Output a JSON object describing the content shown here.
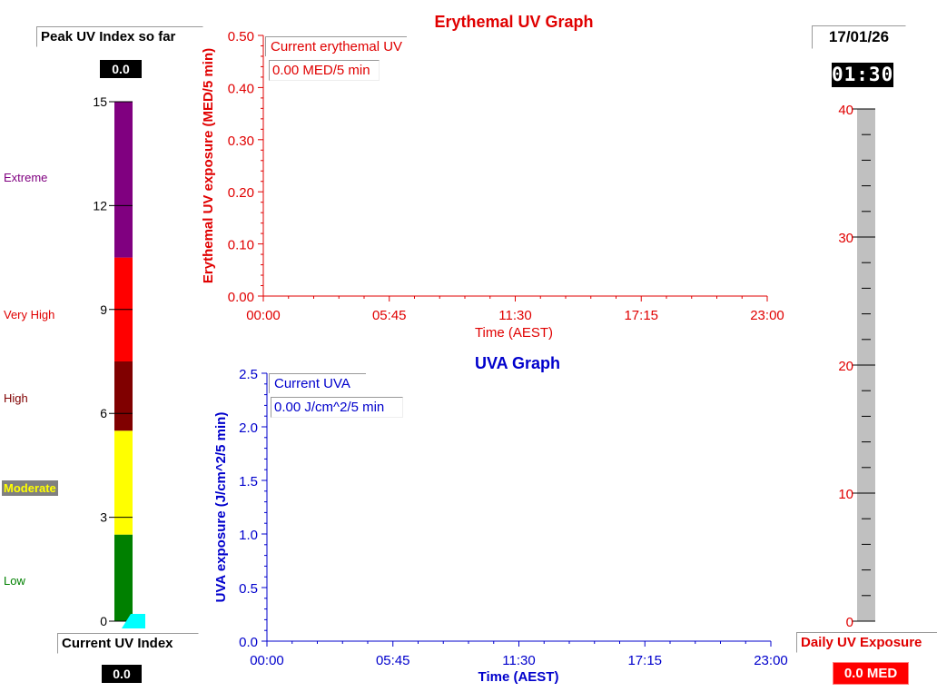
{
  "peak": {
    "label": "Peak UV Index so far",
    "value": "0.0"
  },
  "current_index": {
    "label": "Current UV Index",
    "value": "0.0"
  },
  "date": "17/01/26",
  "clock": "01:30",
  "daily": {
    "label": "Daily UV Exposure",
    "value": "0.0 MED"
  },
  "uv_scale": {
    "levels": [
      {
        "name": "Low",
        "color": "#008000",
        "from": 0,
        "to": 2.5
      },
      {
        "name": "Moderate",
        "color": "#ffff00",
        "from": 2.5,
        "to": 5.5
      },
      {
        "name": "High",
        "color": "#800000",
        "from": 5.5,
        "to": 7.5
      },
      {
        "name": "Very High",
        "color": "#ff0000",
        "from": 7.5,
        "to": 10.5
      },
      {
        "name": "Extreme",
        "color": "#800080",
        "from": 10.5,
        "to": 15
      }
    ]
  },
  "chart_data": [
    {
      "type": "bar",
      "name": "uv-index-scale",
      "ylim": [
        0,
        15
      ],
      "yticks": [
        "0",
        "3",
        "6",
        "9",
        "12",
        "15"
      ],
      "categories": [
        "Low",
        "Moderate",
        "High",
        "Very High",
        "Extreme"
      ],
      "value": 0.0
    },
    {
      "type": "line",
      "title": "Erythemal UV Graph",
      "xlabel": "Time (AEST)",
      "ylabel": "Erythemal UV exposure (MED/5 min)",
      "xticks": [
        "00:00",
        "05:45",
        "11:30",
        "17:15",
        "23:00"
      ],
      "yticks": [
        "0.00",
        "0.10",
        "0.20",
        "0.30",
        "0.40",
        "0.50"
      ],
      "ylim": [
        0,
        0.5
      ],
      "legend_title": "Current erythemal UV",
      "legend_value": "0.00 MED/5 min",
      "series": [
        {
          "values": []
        }
      ]
    },
    {
      "type": "line",
      "title": "UVA Graph",
      "xlabel": "Time (AEST)",
      "ylabel": "UVA exposure  (J/cm^2/5 min)",
      "xticks": [
        "00:00",
        "05:45",
        "11:30",
        "17:15",
        "23:00"
      ],
      "yticks": [
        "0.0",
        "0.5",
        "1.0",
        "1.5",
        "2.0",
        "2.5"
      ],
      "ylim": [
        0,
        2.5
      ],
      "legend_title": "Current UVA",
      "legend_value": "0.00 J/cm^2/5 min",
      "series": [
        {
          "values": []
        }
      ]
    },
    {
      "type": "bar",
      "name": "daily-exposure-gauge",
      "ylim": [
        0,
        40
      ],
      "yticks": [
        "0",
        "10",
        "20",
        "30",
        "40"
      ],
      "value": 0.0
    }
  ],
  "colors": {
    "red": "#e00000",
    "blue": "#0000cc",
    "gauge": "#c0c0c0",
    "pointer": "#00ffff",
    "moderate_bg": "#808080"
  }
}
